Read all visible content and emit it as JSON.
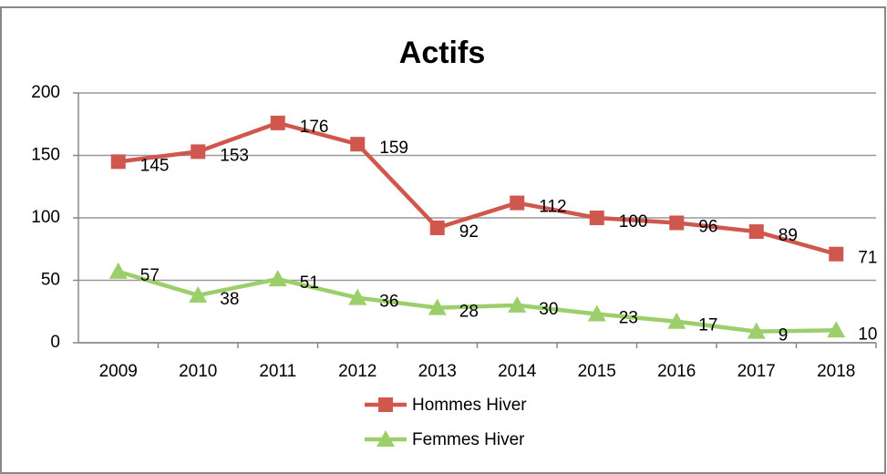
{
  "chart_data": {
    "type": "line",
    "title": "Actifs",
    "categories": [
      "2009",
      "2010",
      "2011",
      "2012",
      "2013",
      "2014",
      "2015",
      "2016",
      "2017",
      "2018"
    ],
    "series": [
      {
        "name": "Hommes Hiver",
        "color": "#d0574e",
        "marker": "square",
        "values": [
          145,
          153,
          176,
          159,
          92,
          112,
          100,
          96,
          89,
          71
        ]
      },
      {
        "name": "Femmes Hiver",
        "color": "#9ccf6b",
        "marker": "triangle",
        "values": [
          57,
          38,
          51,
          36,
          28,
          30,
          23,
          17,
          9,
          10
        ]
      }
    ],
    "ylim": [
      0,
      200
    ],
    "yticks": [
      0,
      50,
      100,
      150,
      200
    ],
    "grid": true,
    "legend": "bottom"
  }
}
